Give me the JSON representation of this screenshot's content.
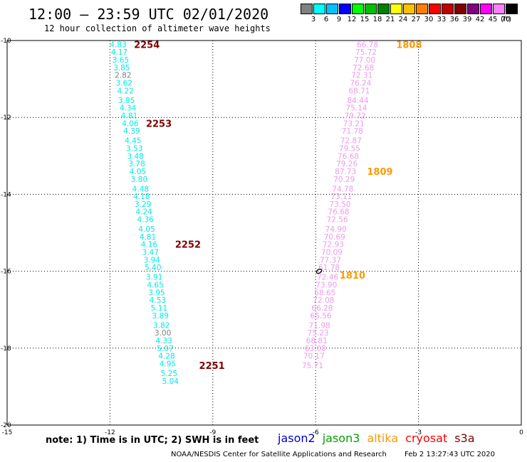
{
  "header": {
    "title": "12:00 – 23:59 UTC 02/01/2020",
    "subtitle": "12 hour collection of altimeter wave heights"
  },
  "legend": {
    "unit": "(ft)",
    "bins": [
      {
        "label": "3",
        "color": "#808080"
      },
      {
        "label": "6",
        "color": "#00ffff"
      },
      {
        "label": "9",
        "color": "#00c0ff"
      },
      {
        "label": "12",
        "color": "#0000ff"
      },
      {
        "label": "15",
        "color": "#00ff00"
      },
      {
        "label": "18",
        "color": "#00c000"
      },
      {
        "label": "21",
        "color": "#008000"
      },
      {
        "label": "24",
        "color": "#ffff00"
      },
      {
        "label": "27",
        "color": "#ffc000"
      },
      {
        "label": "30",
        "color": "#ff8000"
      },
      {
        "label": "33",
        "color": "#ff0000"
      },
      {
        "label": "36",
        "color": "#c00000"
      },
      {
        "label": "39",
        "color": "#800000"
      },
      {
        "label": "42",
        "color": "#800080"
      },
      {
        "label": "45",
        "color": "#ff00ff"
      },
      {
        "label": "70",
        "color": "#ff80ff"
      },
      {
        "label": "",
        "color": "#000000"
      }
    ]
  },
  "footer": {
    "note": "note: 1) Time is in UTC; 2) SWH is in feet",
    "satellites": [
      {
        "name": "jason2",
        "color": "#0000cc"
      },
      {
        "name": "jason3",
        "color": "#00a000"
      },
      {
        "name": "altika",
        "color": "#ff9900"
      },
      {
        "name": "cryosat",
        "color": "#ff0000"
      },
      {
        "name": "s3a",
        "color": "#800000"
      }
    ],
    "credit_left": "NOAA/NESDIS Center for Satellite Applications and Research",
    "credit_right": "Feb  2 13:27:43 UTC 2020"
  },
  "chart_data": {
    "type": "scatter",
    "xlim": [
      -15,
      0
    ],
    "ylim": [
      -20,
      -10
    ],
    "x_ticks": [
      "-15",
      "-12",
      "-9",
      "-6",
      "-3",
      "0"
    ],
    "y_ticks": [
      "-10",
      "-12",
      "-14",
      "-16",
      "-18",
      "-20"
    ],
    "grid": true,
    "tracks": [
      {
        "satellite": "s3a",
        "value_color": "#00e8e8",
        "label_color": "#800000",
        "values": [
          {
            "x": -12.0,
            "y": -10.1,
            "v": "4.83"
          },
          {
            "x": -11.97,
            "y": -10.3,
            "v": "4.17"
          },
          {
            "x": -11.93,
            "y": -10.5,
            "v": "3.65"
          },
          {
            "x": -11.9,
            "y": -10.7,
            "v": "3.85"
          },
          {
            "x": -11.86,
            "y": -10.9,
            "v": "2.82",
            "c": "#808080"
          },
          {
            "x": -11.83,
            "y": -11.1,
            "v": "3.62"
          },
          {
            "x": -11.79,
            "y": -11.3,
            "v": "4.22"
          },
          {
            "x": -11.76,
            "y": -11.55,
            "v": "3.95"
          },
          {
            "x": -11.72,
            "y": -11.75,
            "v": "4.34"
          },
          {
            "x": -11.68,
            "y": -11.95,
            "v": "4.81"
          },
          {
            "x": -11.65,
            "y": -12.15,
            "v": "4.06"
          },
          {
            "x": -11.61,
            "y": -12.35,
            "v": "4.39"
          },
          {
            "x": -11.57,
            "y": -12.6,
            "v": "4.45"
          },
          {
            "x": -11.53,
            "y": -12.8,
            "v": "3.53"
          },
          {
            "x": -11.5,
            "y": -13.0,
            "v": "3.48"
          },
          {
            "x": -11.46,
            "y": -13.2,
            "v": "3.78"
          },
          {
            "x": -11.43,
            "y": -13.4,
            "v": "4.05"
          },
          {
            "x": -11.39,
            "y": -13.6,
            "v": "3.80"
          },
          {
            "x": -11.35,
            "y": -13.85,
            "v": "4.48"
          },
          {
            "x": -11.32,
            "y": -14.05,
            "v": "4.18"
          },
          {
            "x": -11.28,
            "y": -14.25,
            "v": "3.29"
          },
          {
            "x": -11.25,
            "y": -14.45,
            "v": "4.24"
          },
          {
            "x": -11.21,
            "y": -14.65,
            "v": "4.36"
          },
          {
            "x": -11.17,
            "y": -14.9,
            "v": "4.05"
          },
          {
            "x": -11.14,
            "y": -15.1,
            "v": "4.81"
          },
          {
            "x": -11.1,
            "y": -15.3,
            "v": "4.16"
          },
          {
            "x": -11.06,
            "y": -15.5,
            "v": "3.47"
          },
          {
            "x": -11.02,
            "y": -15.7,
            "v": "3.94"
          },
          {
            "x": -10.99,
            "y": -15.9,
            "v": "5.40"
          },
          {
            "x": -10.95,
            "y": -16.15,
            "v": "3.91"
          },
          {
            "x": -10.92,
            "y": -16.35,
            "v": "4.65"
          },
          {
            "x": -10.88,
            "y": -16.55,
            "v": "3.95"
          },
          {
            "x": -10.85,
            "y": -16.75,
            "v": "4.53"
          },
          {
            "x": -10.81,
            "y": -16.95,
            "v": "5.11"
          },
          {
            "x": -10.77,
            "y": -17.15,
            "v": "3.89"
          },
          {
            "x": -10.74,
            "y": -17.4,
            "v": "3.82"
          },
          {
            "x": -10.7,
            "y": -17.6,
            "v": "3.00",
            "c": "#808080"
          },
          {
            "x": -10.67,
            "y": -17.8,
            "v": "4.33"
          },
          {
            "x": -10.63,
            "y": -18.0,
            "v": "5.07"
          },
          {
            "x": -10.59,
            "y": -18.2,
            "v": "4.28"
          },
          {
            "x": -10.56,
            "y": -18.4,
            "v": "4.95"
          },
          {
            "x": -10.52,
            "y": -18.65,
            "v": "5.25"
          },
          {
            "x": -10.48,
            "y": -18.85,
            "v": "5.04"
          }
        ],
        "time_labels": [
          {
            "x": -11.3,
            "y": -10.1,
            "label": "2254"
          },
          {
            "x": -10.95,
            "y": -12.15,
            "label": "2253"
          },
          {
            "x": -10.1,
            "y": -15.3,
            "label": "2252"
          },
          {
            "x": -9.4,
            "y": -18.45,
            "label": "2251"
          }
        ]
      },
      {
        "satellite": "altika",
        "value_color": "#ee99ee",
        "label_color": "#ff9900",
        "values": [
          {
            "x": -4.8,
            "y": -10.1,
            "v": "66.78"
          },
          {
            "x": -4.84,
            "y": -10.3,
            "v": "75.72"
          },
          {
            "x": -4.88,
            "y": -10.5,
            "v": "77.00"
          },
          {
            "x": -4.92,
            "y": -10.7,
            "v": "72.68"
          },
          {
            "x": -4.96,
            "y": -10.9,
            "v": "72.31"
          },
          {
            "x": -5.0,
            "y": -11.1,
            "v": "76.24"
          },
          {
            "x": -5.04,
            "y": -11.3,
            "v": "68.71"
          },
          {
            "x": -5.08,
            "y": -11.55,
            "v": "84.44"
          },
          {
            "x": -5.12,
            "y": -11.75,
            "v": "75.14"
          },
          {
            "x": -5.16,
            "y": -11.95,
            "v": "79.72"
          },
          {
            "x": -5.2,
            "y": -12.15,
            "v": "73.21"
          },
          {
            "x": -5.24,
            "y": -12.35,
            "v": "71.78"
          },
          {
            "x": -5.28,
            "y": -12.6,
            "v": "72.87"
          },
          {
            "x": -5.32,
            "y": -12.8,
            "v": "79.55"
          },
          {
            "x": -5.36,
            "y": -13.0,
            "v": "76.68"
          },
          {
            "x": -5.4,
            "y": -13.2,
            "v": "79.26"
          },
          {
            "x": -5.44,
            "y": -13.4,
            "v": "87.73"
          },
          {
            "x": -5.48,
            "y": -13.6,
            "v": "70.29"
          },
          {
            "x": -5.52,
            "y": -13.85,
            "v": "74.78"
          },
          {
            "x": -5.56,
            "y": -14.05,
            "v": "73.11"
          },
          {
            "x": -5.6,
            "y": -14.25,
            "v": "73.50"
          },
          {
            "x": -5.64,
            "y": -14.45,
            "v": "76.68"
          },
          {
            "x": -5.68,
            "y": -14.65,
            "v": "72.56"
          },
          {
            "x": -5.72,
            "y": -14.9,
            "v": "74.90"
          },
          {
            "x": -5.76,
            "y": -15.1,
            "v": "70.69"
          },
          {
            "x": -5.8,
            "y": -15.3,
            "v": "72.93"
          },
          {
            "x": -5.84,
            "y": -15.5,
            "v": "70.09"
          },
          {
            "x": -5.88,
            "y": -15.7,
            "v": "77.37"
          },
          {
            "x": -5.92,
            "y": -15.9,
            "v": "61.78"
          },
          {
            "x": -5.96,
            "y": -16.15,
            "v": "72.46"
          },
          {
            "x": -6.0,
            "y": -16.35,
            "v": "73.90"
          },
          {
            "x": -6.04,
            "y": -16.55,
            "v": "68.65"
          },
          {
            "x": -6.08,
            "y": -16.75,
            "v": "72.08"
          },
          {
            "x": -6.12,
            "y": -16.95,
            "v": "66.28"
          },
          {
            "x": -6.16,
            "y": -17.15,
            "v": "65.56"
          },
          {
            "x": -6.2,
            "y": -17.4,
            "v": "71.98"
          },
          {
            "x": -6.24,
            "y": -17.6,
            "v": "75.23"
          },
          {
            "x": -6.28,
            "y": -17.8,
            "v": "68.81"
          },
          {
            "x": -6.32,
            "y": -18.0,
            "v": "63.08"
          },
          {
            "x": -6.36,
            "y": -18.2,
            "v": "70.17"
          },
          {
            "x": -6.4,
            "y": -18.45,
            "v": "75.71"
          }
        ],
        "time_labels": [
          {
            "x": -3.65,
            "y": -10.1,
            "label": "1808"
          },
          {
            "x": -4.5,
            "y": -13.4,
            "label": "1809"
          },
          {
            "x": -5.3,
            "y": -16.1,
            "label": "1810"
          }
        ]
      }
    ]
  }
}
